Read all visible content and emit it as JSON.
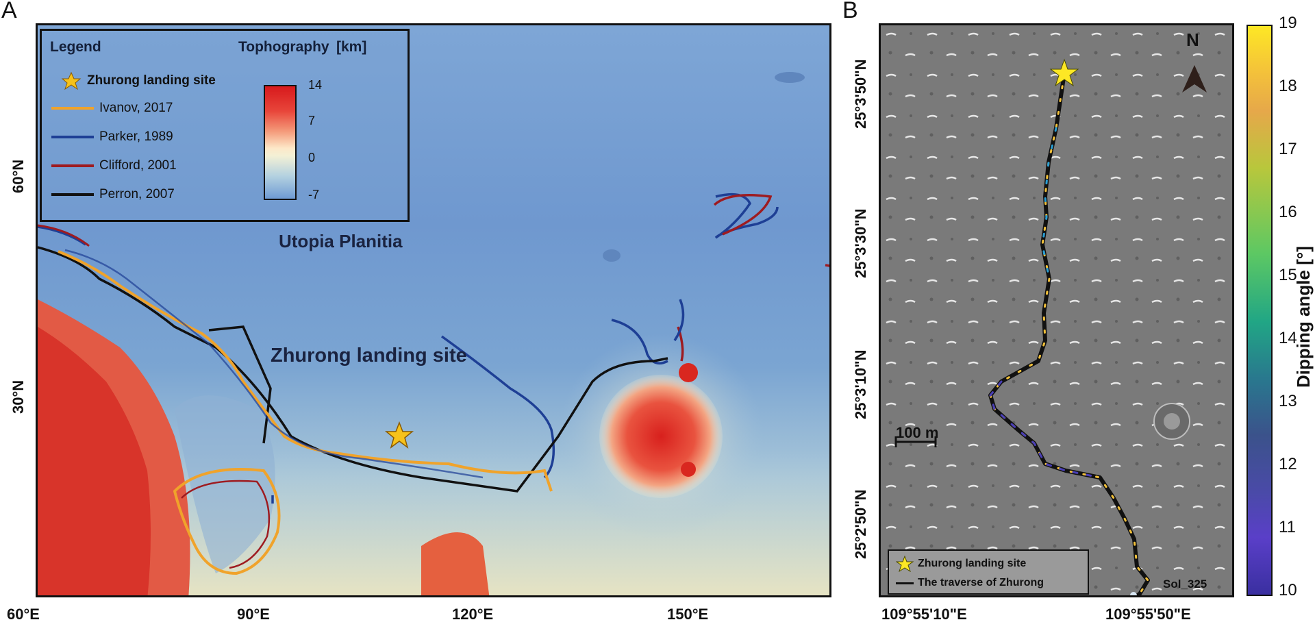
{
  "panel_a": {
    "letter": "A",
    "place_label": "Utopia Planitia",
    "site_label": "Zhurong landing site",
    "legend": {
      "title": "Legend",
      "topo_title": "Tophography",
      "topo_unit": "[km]",
      "star_entry": "Zhurong landing site",
      "entries": [
        {
          "label": "Ivanov, 2017",
          "color": "#f0a32b"
        },
        {
          "label": "Parker, 1989",
          "color": "#1e3f95"
        },
        {
          "label": "Clifford, 2001",
          "color": "#9e1b20"
        },
        {
          "label": "Perron, 2007",
          "color": "#111111"
        }
      ],
      "colorbar_ticks": [
        "14",
        "7",
        "0",
        "-7"
      ]
    },
    "x_ticks": [
      "60°E",
      "90°E",
      "120°E",
      "150°E"
    ],
    "y_ticks": [
      "60°N",
      "30°N"
    ]
  },
  "panel_b": {
    "letter": "B",
    "north_label": "N",
    "scale_label": "100 m",
    "end_label": "Sol_325",
    "legend": {
      "star_entry": "Zhurong landing site",
      "line_entry": "The traverse of Zhurong"
    },
    "x_ticks": [
      "109°55'10\"E",
      "109°55'50\"E"
    ],
    "y_ticks": [
      "25°3'50\"N",
      "25°3'30\"N",
      "25°3'10\"N",
      "25°2'50\"N"
    ],
    "colorbar": {
      "label": "Dipping angle [°]",
      "ticks": [
        "19",
        "18",
        "17",
        "16",
        "15",
        "14",
        "13",
        "12",
        "11",
        "10"
      ]
    }
  },
  "colors": {
    "ivanov": "#f0a32b",
    "parker": "#1e3f95",
    "clifford": "#9e1b20",
    "perron": "#111111",
    "star": "#f6c21b"
  }
}
